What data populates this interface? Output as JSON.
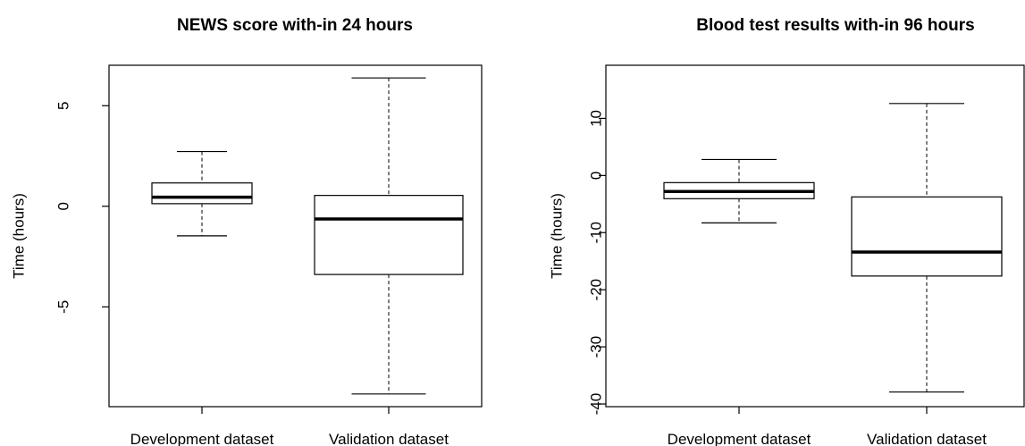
{
  "chart_data": [
    {
      "type": "box",
      "title": "NEWS score with-in 24 hours",
      "y_label": "Time (hours)",
      "categories": [
        "Development dataset",
        "Validation dataset"
      ],
      "boxes": [
        {
          "min": -1.47,
          "q1": 0.13,
          "median": 0.45,
          "q3": 1.16,
          "max": 2.72
        },
        {
          "min": -9.33,
          "q1": -3.39,
          "median": -0.63,
          "q3": 0.54,
          "max": 6.38
        }
      ],
      "ylim": [
        -9.96,
        7.01
      ],
      "yticks": [
        -5,
        0,
        5
      ]
    },
    {
      "type": "box",
      "title": "Blood test results with-in 96 hours",
      "y_label": "Time (hours)",
      "categories": [
        "Development dataset",
        "Validation dataset"
      ],
      "boxes": [
        {
          "min": -8.3,
          "q1": -4.06,
          "median": -2.8,
          "q3": -1.25,
          "max": 2.8
        },
        {
          "min": -37.9,
          "q1": -17.6,
          "median": -13.4,
          "q3": -3.75,
          "max": 12.6
        }
      ],
      "ylim": [
        -40.47,
        19.3
      ],
      "yticks": [
        -40,
        -30,
        -20,
        -10,
        0,
        10
      ]
    }
  ]
}
